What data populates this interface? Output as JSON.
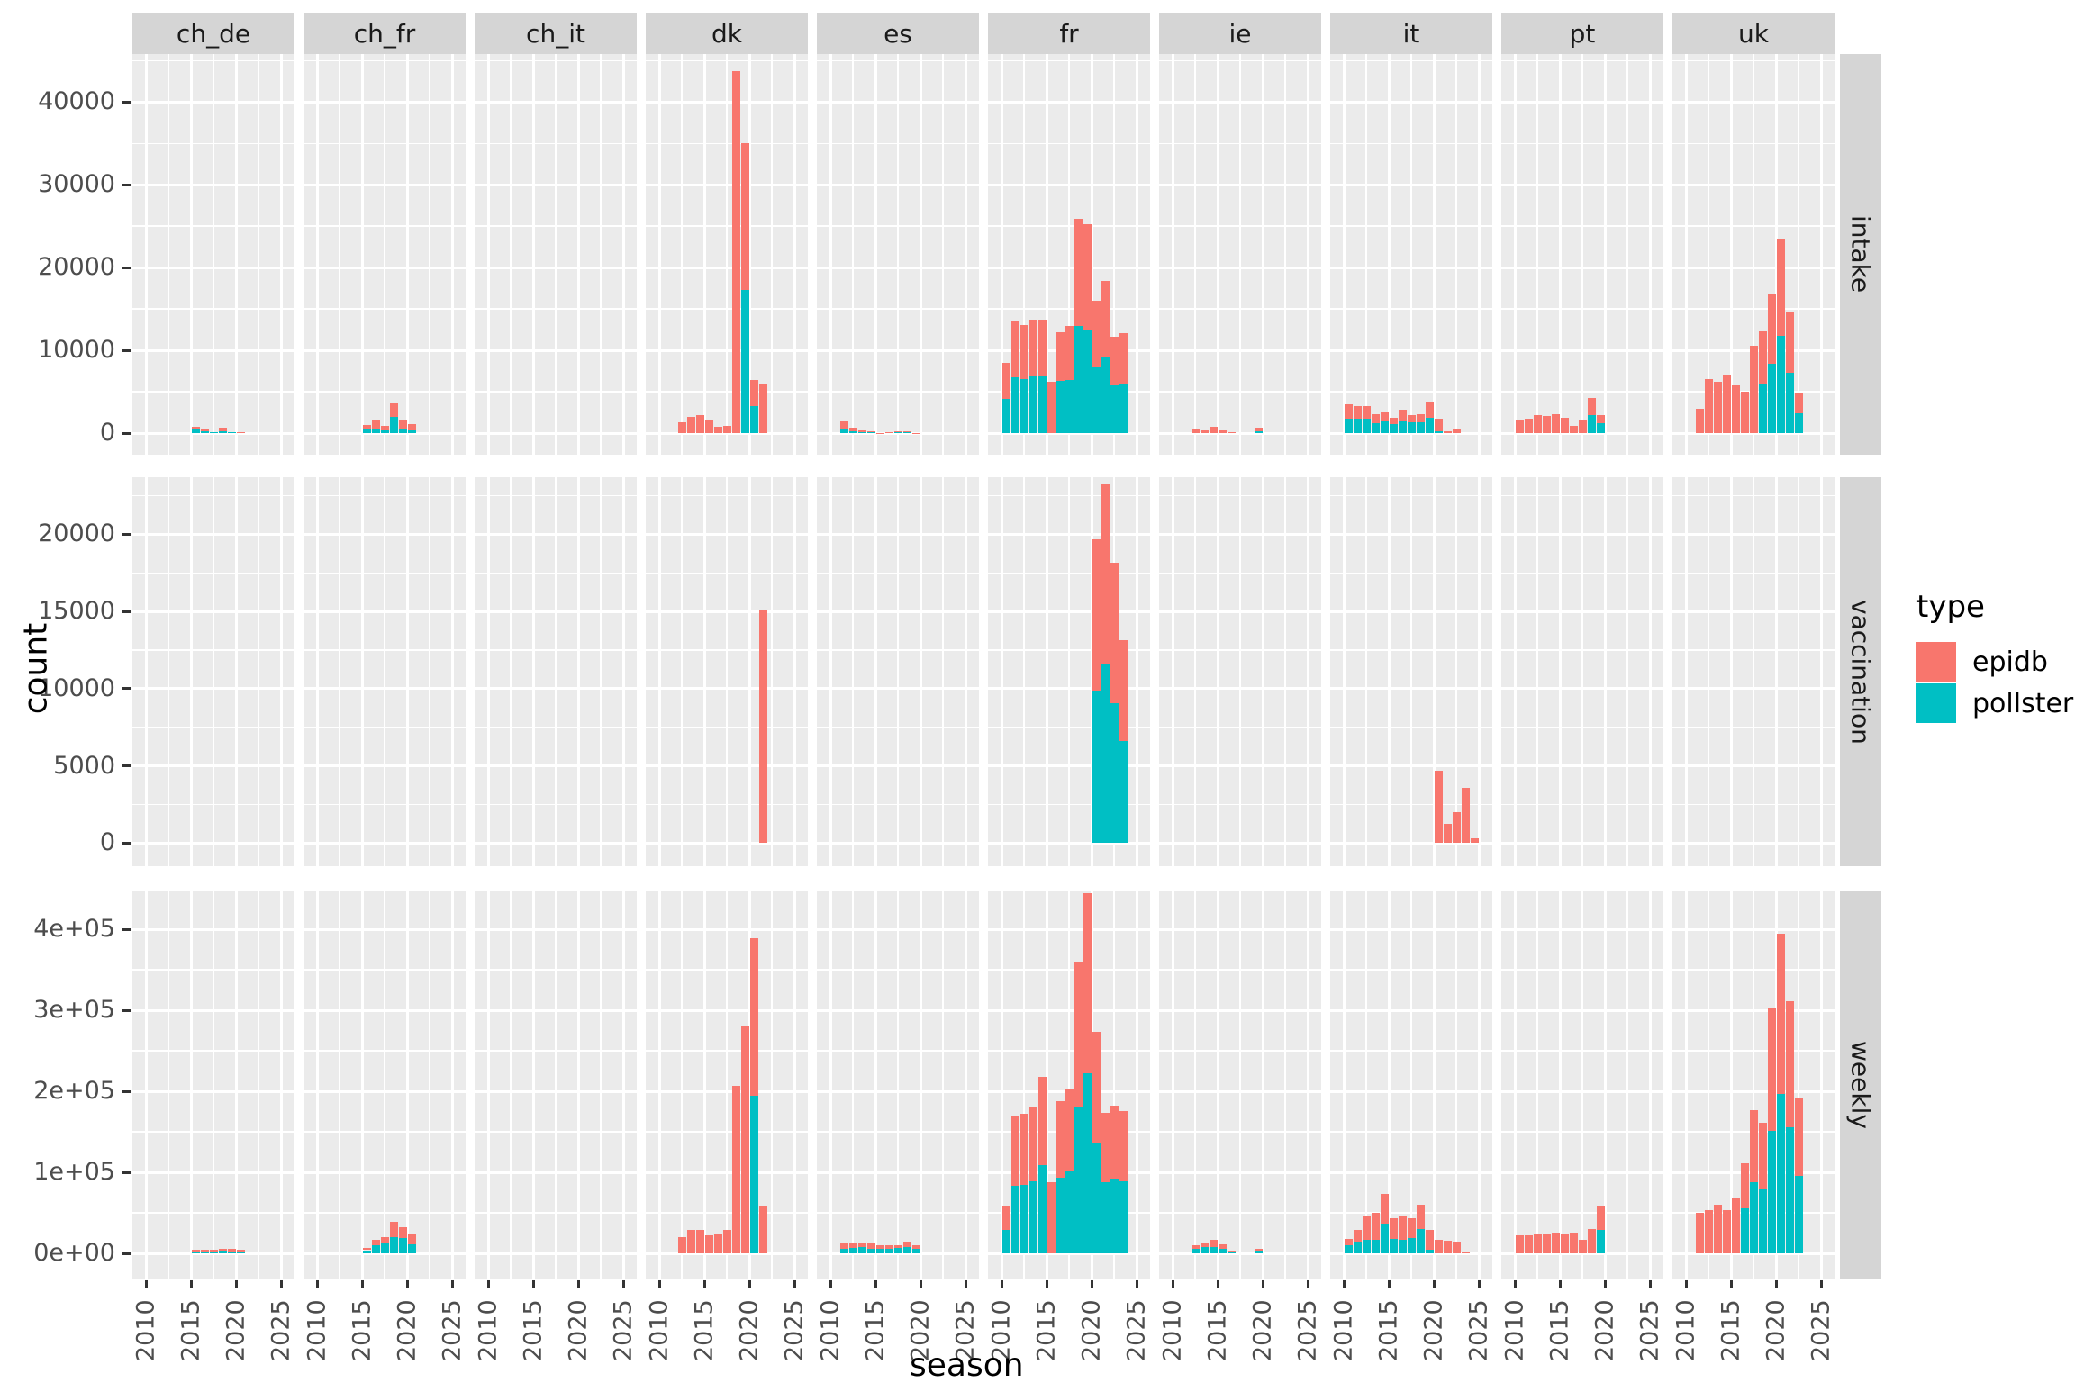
{
  "chart_data": {
    "type": "bar",
    "subtype": "stacked-faceted",
    "xlabel": "season",
    "ylabel": "count",
    "x_range": [
      2008.5,
      2026.5
    ],
    "x_ticks": [
      2010,
      2015,
      2020,
      2025
    ],
    "x_minor": [
      2012.5,
      2017.5,
      2022.5
    ],
    "bar_width_years": 0.9,
    "facet_columns": [
      "ch_de",
      "ch_fr",
      "ch_it",
      "dk",
      "es",
      "fr",
      "ie",
      "it",
      "pt",
      "uk"
    ],
    "facet_rows": [
      "intake",
      "vaccination",
      "weekly"
    ],
    "legend": {
      "title": "type",
      "entries": [
        {
          "label": "epidb",
          "color": "#F8766D"
        },
        {
          "label": "pollster",
          "color": "#00BFC4"
        }
      ]
    },
    "rows": [
      {
        "name": "intake",
        "y_range": [
          -2600,
          45800
        ],
        "ticks": [
          {
            "label": "0",
            "value": 0
          },
          {
            "label": "10000",
            "value": 10000
          },
          {
            "label": "20000",
            "value": 20000
          },
          {
            "label": "30000",
            "value": 30000
          },
          {
            "label": "40000",
            "value": 40000
          }
        ],
        "minor": [
          5000,
          15000,
          25000,
          35000,
          45000
        ]
      },
      {
        "name": "vaccination",
        "y_range": [
          -1500,
          23700
        ],
        "ticks": [
          {
            "label": "0",
            "value": 0
          },
          {
            "label": "5000",
            "value": 5000
          },
          {
            "label": "10000",
            "value": 10000
          },
          {
            "label": "15000",
            "value": 15000
          },
          {
            "label": "20000",
            "value": 20000
          }
        ],
        "minor": [
          2500,
          7500,
          12500,
          17500,
          22500
        ]
      },
      {
        "name": "weekly",
        "y_range": [
          -31000,
          446800
        ],
        "ticks": [
          {
            "label": "0e+00",
            "value": 0
          },
          {
            "label": "1e+05",
            "value": 100000
          },
          {
            "label": "2e+05",
            "value": 200000
          },
          {
            "label": "3e+05",
            "value": 300000
          },
          {
            "label": "4e+05",
            "value": 400000
          }
        ],
        "minor": [
          50000,
          150000,
          250000,
          350000
        ]
      }
    ],
    "data": {
      "intake": {
        "ch_de": {
          "seasons": [
            2015,
            2016,
            2017,
            2018,
            2019,
            2020
          ],
          "epidb": [
            330,
            180,
            0,
            365,
            0,
            100
          ],
          "pollster": [
            400,
            220,
            100,
            255,
            100,
            0
          ]
        },
        "ch_fr": {
          "seasons": [
            2015,
            2016,
            2017,
            2018,
            2019,
            2020
          ],
          "epidb": [
            545,
            950,
            585,
            1670,
            985,
            725
          ],
          "pollster": [
            475,
            580,
            290,
            1930,
            545,
            365
          ]
        },
        "dk": {
          "seasons": [
            2012,
            2013,
            2014,
            2015,
            2016,
            2017,
            2018,
            2019,
            2020,
            2021
          ],
          "epidb": [
            1340,
            1930,
            2140,
            1560,
            760,
            840,
            43700,
            17700,
            3130,
            5920
          ],
          "pollster": [
            0,
            0,
            0,
            0,
            0,
            0,
            0,
            17300,
            3300,
            0
          ]
        },
        "es": {
          "seasons": [
            2011,
            2012,
            2013,
            2014,
            2015,
            2016,
            2017,
            2018,
            2019
          ],
          "epidb": [
            905,
            395,
            250,
            145,
            40,
            70,
            105,
            140,
            40
          ],
          "pollster": [
            545,
            255,
            110,
            75,
            0,
            0,
            145,
            110,
            0
          ]
        },
        "fr": {
          "seasons": [
            2010,
            2011,
            2012,
            2013,
            2014,
            2015,
            2016,
            2017,
            2018,
            2019,
            2020,
            2021,
            2022,
            2023
          ],
          "epidb": [
            4400,
            6840,
            6600,
            6830,
            6860,
            6250,
            5820,
            6500,
            12950,
            12700,
            8070,
            9240,
            5920,
            6200
          ],
          "pollster": [
            4100,
            6760,
            6500,
            6870,
            6840,
            0,
            6330,
            6400,
            12950,
            12500,
            7930,
            9160,
            5780,
            5850
          ]
        },
        "ie": {
          "seasons": [
            2012,
            2013,
            2014,
            2015,
            2016,
            2019
          ],
          "epidb": [
            510,
            360,
            730,
            290,
            110,
            370
          ],
          "pollster": [
            0,
            0,
            0,
            0,
            0,
            250
          ]
        },
        "it": {
          "seasons": [
            2010,
            2011,
            2012,
            2013,
            2014,
            2015,
            2016,
            2017,
            2018,
            2019,
            2020,
            2021,
            2022
          ],
          "epidb": [
            1750,
            1510,
            1510,
            1010,
            1080,
            790,
            1330,
            930,
            970,
            1830,
            1540,
            250,
            540
          ],
          "pollster": [
            1750,
            1720,
            1790,
            1250,
            1470,
            1110,
            1470,
            1290,
            1360,
            1830,
            220,
            0,
            0
          ]
        },
        "pt": {
          "seasons": [
            2010,
            2011,
            2012,
            2013,
            2014,
            2015,
            2016,
            2017,
            2018,
            2019
          ],
          "epidb": [
            1540,
            1790,
            2150,
            2040,
            2260,
            1900,
            930,
            1610,
            2150,
            970
          ],
          "pollster": [
            0,
            0,
            0,
            0,
            0,
            0,
            0,
            0,
            2150,
            1250
          ]
        },
        "uk": {
          "seasons": [
            2011,
            2012,
            2013,
            2014,
            2015,
            2016,
            2017,
            2018,
            2019,
            2020,
            2021,
            2022
          ],
          "epidb": [
            2900,
            6560,
            6200,
            7030,
            5740,
            5050,
            10570,
            6270,
            8430,
            11760,
            7280,
            2510
          ],
          "pollster": [
            0,
            0,
            0,
            0,
            0,
            0,
            0,
            5990,
            8420,
            11720,
            7310,
            2440
          ]
        }
      },
      "vaccination": {
        "dk": {
          "seasons": [
            2021
          ],
          "epidb": [
            15150
          ],
          "pollster": [
            0
          ]
        },
        "fr": {
          "seasons": [
            2020,
            2021,
            2022,
            2023
          ],
          "epidb": [
            9795,
            11640,
            9060,
            6550
          ],
          "pollster": [
            9855,
            11640,
            9080,
            6600
          ]
        },
        "it": {
          "seasons": [
            2020,
            2021,
            2022,
            2023,
            2024
          ],
          "epidb": [
            4690,
            1250,
            2010,
            3600,
            290
          ],
          "pollster": [
            0,
            0,
            0,
            0,
            0
          ]
        }
      },
      "weekly": {
        "ch_de": {
          "seasons": [
            2015,
            2016,
            2017,
            2018,
            2019,
            2020
          ],
          "epidb": [
            2400,
            2400,
            2100,
            2600,
            2800,
            2400
          ],
          "pollster": [
            2600,
            2600,
            2200,
            3000,
            2800,
            2600
          ]
        },
        "ch_fr": {
          "seasons": [
            2015,
            2016,
            2017,
            2018,
            2019,
            2020
          ],
          "epidb": [
            3000,
            7030,
            8510,
            18500,
            13690,
            12580
          ],
          "pollster": [
            4000,
            9620,
            11840,
            20350,
            18870,
            11470
          ]
        },
        "dk": {
          "seasons": [
            2012,
            2013,
            2014,
            2015,
            2016,
            2017,
            2018,
            2019,
            2020,
            2021
          ],
          "epidb": [
            20000,
            28900,
            28900,
            22200,
            23300,
            28900,
            206500,
            280800,
            194650,
            58800
          ],
          "pollster": [
            0,
            0,
            0,
            0,
            0,
            0,
            0,
            0,
            194250,
            0
          ]
        },
        "es": {
          "seasons": [
            2011,
            2012,
            2013,
            2014,
            2015,
            2016,
            2017,
            2018,
            2019
          ],
          "epidb": [
            6700,
            6600,
            5900,
            7400,
            4400,
            3700,
            3700,
            6700,
            5200
          ],
          "pollster": [
            5900,
            6700,
            7400,
            5200,
            5200,
            5900,
            6700,
            7400,
            5200
          ]
        },
        "fr": {
          "seasons": [
            2010,
            2011,
            2012,
            2013,
            2014,
            2015,
            2016,
            2017,
            2018,
            2019,
            2020,
            2021,
            2022,
            2023
          ],
          "epidb": [
            29600,
            86600,
            88000,
            91100,
            108700,
            88000,
            94000,
            101800,
            179500,
            222000,
            136900,
            85100,
            91000,
            86200
          ],
          "pollster": [
            28900,
            82900,
            84400,
            89500,
            108800,
            0,
            94000,
            102100,
            180500,
            222400,
            136200,
            88100,
            91800,
            89200
          ]
        },
        "ie": {
          "seasons": [
            2012,
            2013,
            2014,
            2015,
            2016,
            2019
          ],
          "epidb": [
            4500,
            5200,
            8200,
            5900,
            1500,
            2200
          ],
          "pollster": [
            5900,
            7400,
            8100,
            5200,
            1500,
            3700
          ]
        },
        "it": {
          "seasons": [
            2010,
            2011,
            2012,
            2013,
            2014,
            2015,
            2016,
            2017,
            2018,
            2019,
            2020,
            2021,
            2022,
            2023
          ],
          "epidb": [
            7400,
            14800,
            29600,
            33300,
            37000,
            25900,
            30300,
            24400,
            29600,
            24800,
            17000,
            15900,
            14100,
            2200
          ],
          "pollster": [
            10400,
            14100,
            16300,
            16300,
            36300,
            17800,
            16300,
            18500,
            30000,
            4100,
            0,
            0,
            0,
            0
          ]
        },
        "pt": {
          "seasons": [
            2010,
            2011,
            2012,
            2013,
            2014,
            2015,
            2016,
            2017,
            2018,
            2019
          ],
          "epidb": [
            21800,
            22600,
            24400,
            22900,
            25200,
            22900,
            25900,
            17000,
            30300,
            30300
          ],
          "pollster": [
            0,
            0,
            0,
            0,
            0,
            0,
            0,
            0,
            0,
            28900
          ]
        },
        "uk": {
          "seasons": [
            2011,
            2012,
            2013,
            2014,
            2015,
            2016,
            2017,
            2018,
            2019,
            2020,
            2021,
            2022
          ],
          "epidb": [
            50300,
            52900,
            59900,
            52900,
            67700,
            55500,
            88800,
            81400,
            152800,
            197600,
            155400,
            95400
          ],
          "pollster": [
            0,
            0,
            0,
            0,
            0,
            55900,
            88100,
            79900,
            151000,
            196500,
            155800,
            95500
          ]
        }
      }
    },
    "style": {
      "panel_bg": "#EBEBEB",
      "strip_bg": "#D5D5D5",
      "grid_color": "#FFFFFF",
      "tick_text_color": "#4D4D4D",
      "tick_mark_color": "#333333"
    }
  }
}
